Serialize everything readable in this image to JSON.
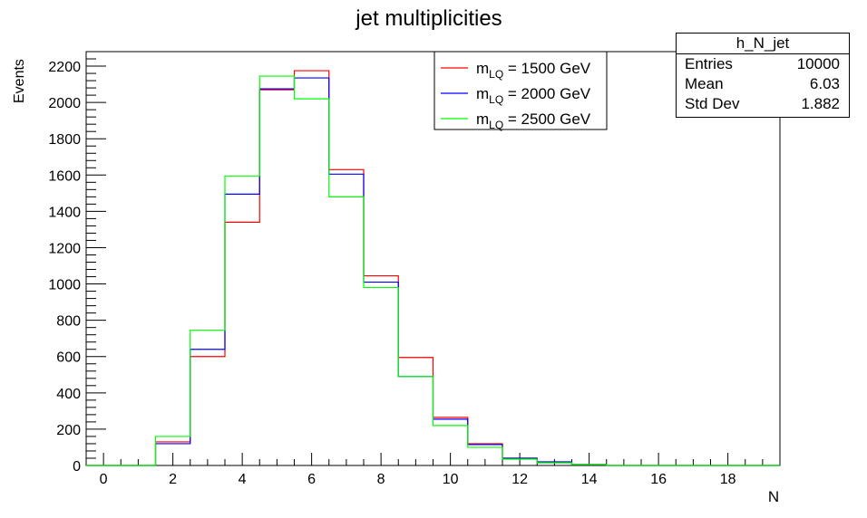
{
  "chart_data": {
    "type": "histogram",
    "title": "jet multiplicities",
    "xlabel": "N",
    "ylabel": "Events",
    "xlim": [
      -0.5,
      19.5
    ],
    "ylim": [
      0,
      2280
    ],
    "x_ticks": [
      0,
      2,
      4,
      6,
      8,
      10,
      12,
      14,
      16,
      18
    ],
    "y_ticks": [
      0,
      200,
      400,
      600,
      800,
      1000,
      1200,
      1400,
      1600,
      1800,
      2000,
      2200
    ],
    "bin_centers": [
      0,
      1,
      2,
      3,
      4,
      5,
      6,
      7,
      8,
      9,
      10,
      11,
      12,
      13,
      14,
      15,
      16,
      17,
      18,
      19
    ],
    "series": [
      {
        "name": "1500",
        "color": "#ff0000",
        "values": [
          0,
          0,
          130,
          600,
          1340,
          2070,
          2175,
          1630,
          1045,
          595,
          265,
          120,
          40,
          15,
          5,
          0,
          0,
          0,
          0,
          0
        ]
      },
      {
        "name": "2000",
        "color": "#0000ff",
        "values": [
          0,
          0,
          120,
          640,
          1495,
          2075,
          2135,
          1605,
          1010,
          490,
          255,
          115,
          40,
          20,
          5,
          0,
          0,
          0,
          0,
          0
        ]
      },
      {
        "name": "2500",
        "color": "#00ff00",
        "values": [
          0,
          0,
          160,
          745,
          1595,
          2145,
          2020,
          1480,
          980,
          490,
          220,
          100,
          35,
          15,
          5,
          0,
          0,
          0,
          0,
          0
        ]
      }
    ],
    "legend": {
      "position": "top-center",
      "prefix_main": "m",
      "prefix_sub": "LQ",
      "suffix": " = ",
      "unit": " GeV"
    },
    "stats_box": {
      "name": "h_N_jet",
      "entries_label": "Entries",
      "entries_value": "10000",
      "mean_label": "Mean",
      "mean_value": "6.03",
      "std_label": "Std Dev",
      "std_value": "1.882",
      "position": "top-right"
    }
  }
}
